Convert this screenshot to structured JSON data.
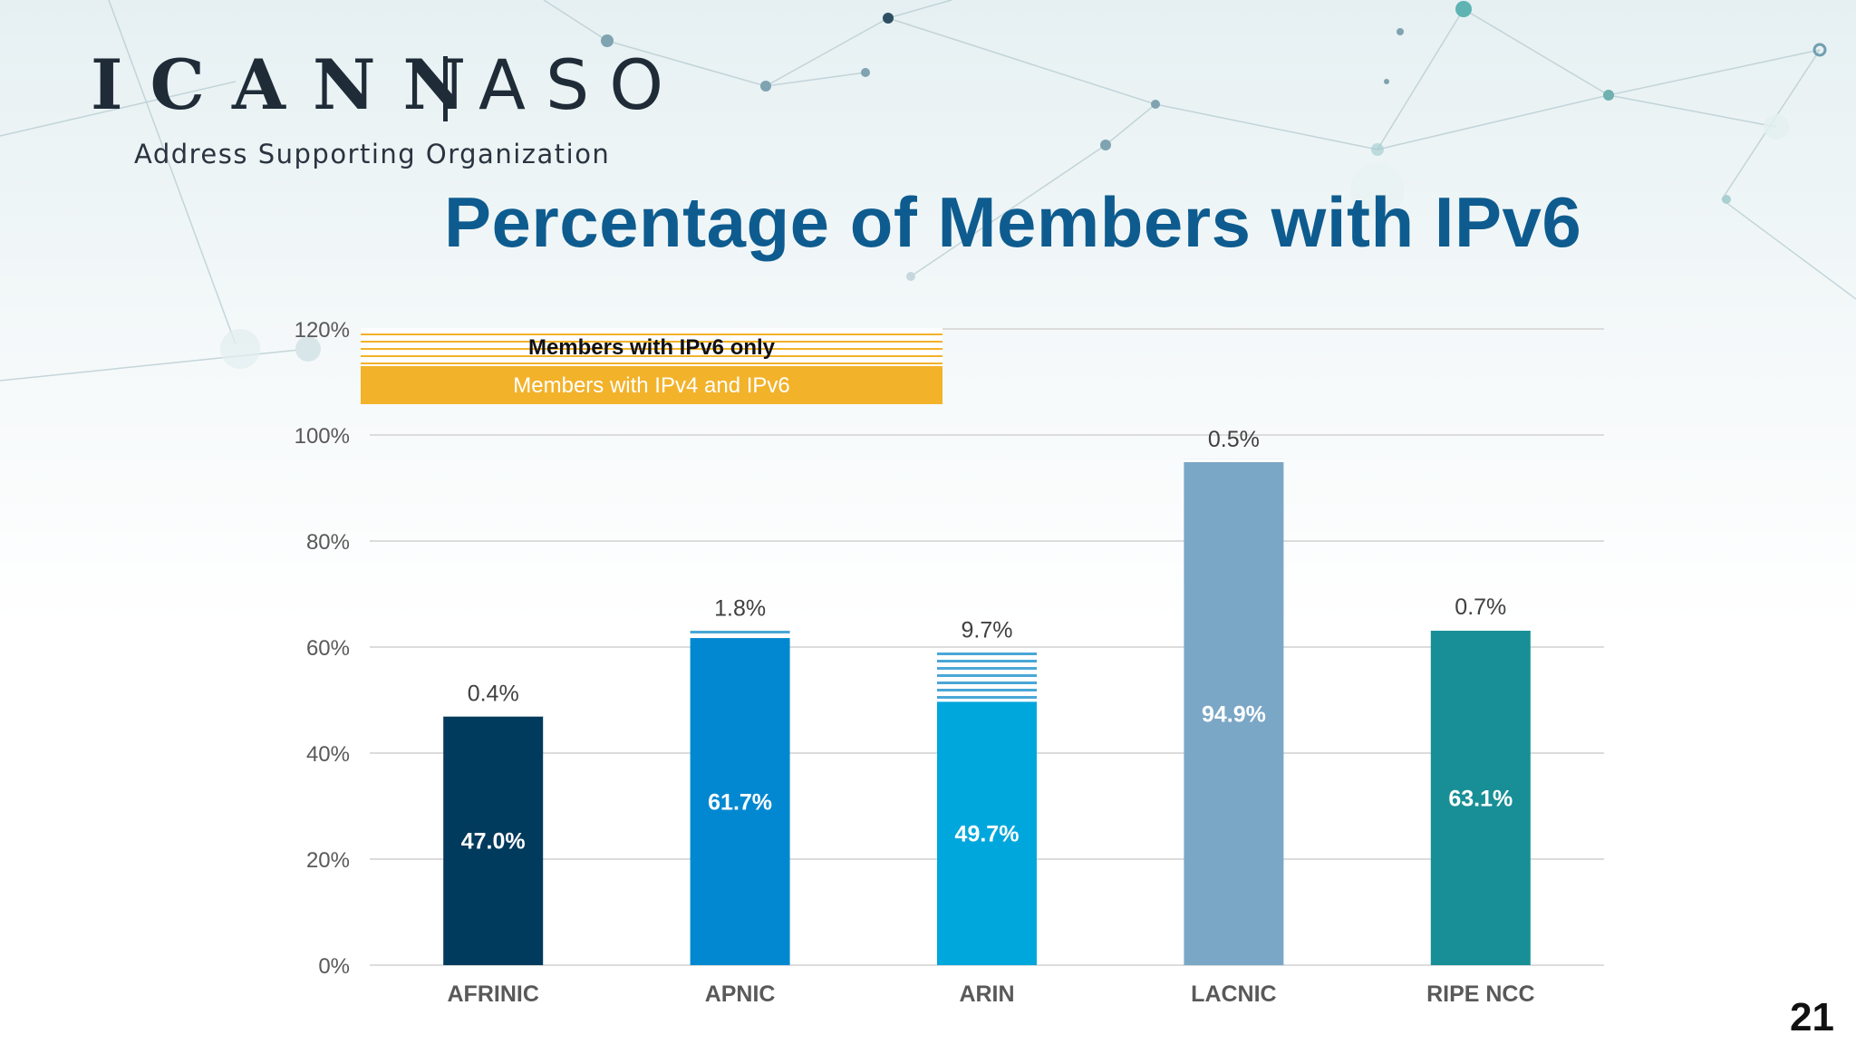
{
  "header": {
    "logo_text": "ICANN",
    "logo_aso": "ASO",
    "logo_subtitle": "Address Supporting Organization",
    "title": "Percentage of Members with IPv6"
  },
  "page_number": "21",
  "chart_data": {
    "type": "bar",
    "stacked": true,
    "title": "Percentage of Members with IPv6",
    "categories": [
      "AFRINIC",
      "APNIC",
      "ARIN",
      "LACNIC",
      "RIPE NCC"
    ],
    "series": [
      {
        "name": "Members with IPv4 and IPv6",
        "values": [
          47.0,
          61.7,
          49.7,
          94.9,
          63.1
        ],
        "labels": [
          "47.0%",
          "61.7%",
          "49.7%",
          "94.9%",
          "63.1%"
        ],
        "colors": [
          "#003a5d",
          "#0288d1",
          "#00a7dc",
          "#7ba7c6",
          "#188f96"
        ]
      },
      {
        "name": "Members with IPv6 only",
        "values": [
          0.4,
          1.8,
          9.7,
          0.5,
          0.7
        ],
        "labels": [
          "0.4%",
          "1.8%",
          "9.7%",
          "0.5%",
          "0.7%"
        ],
        "pattern": "horizontal-stripes"
      }
    ],
    "y_ticks": [
      "0%",
      "20%",
      "40%",
      "60%",
      "80%",
      "100%",
      "120%"
    ],
    "ylim": [
      0,
      120
    ],
    "grid": true,
    "legend_position": "top-left",
    "legend_ipv4_color": "#f2b22a"
  }
}
